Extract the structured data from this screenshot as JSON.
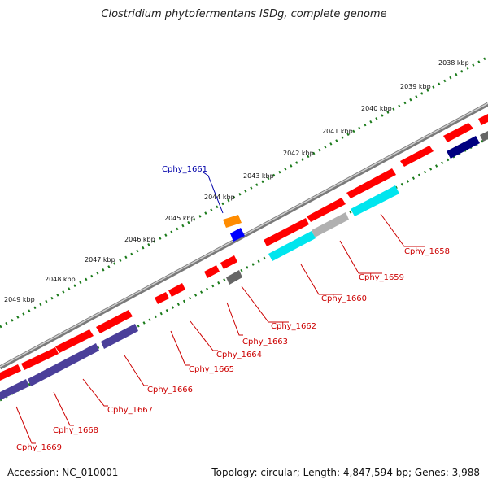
{
  "title": "Clostridium phytofermentans ISDg, complete genome",
  "footer": {
    "accession": "Accession: NC_010001",
    "topology": "Topology: circular; Length: 4,847,594 bp; Genes: 3,988"
  },
  "ruler_labels": [
    "2038 kbp",
    "2039 kbp",
    "2040 kbp",
    "2041 kbp",
    "2042 kbp",
    "2043 kbp",
    "2044 kbp",
    "2045 kbp",
    "2046 kbp",
    "2047 kbp",
    "2048 kbp",
    "2049 kbp"
  ],
  "genes": {
    "Cphy_1658": "Cphy_1658",
    "Cphy_1659": "Cphy_1659",
    "Cphy_1660": "Cphy_1660",
    "Cphy_1661": "Cphy_1661",
    "Cphy_1662": "Cphy_1662",
    "Cphy_1663": "Cphy_1663",
    "Cphy_1664": "Cphy_1664",
    "Cphy_1665": "Cphy_1665",
    "Cphy_1666": "Cphy_1666",
    "Cphy_1667": "Cphy_1667",
    "Cphy_1668": "Cphy_1668",
    "Cphy_1669": "Cphy_1669"
  },
  "colors": {
    "cds": "#ff0000",
    "rna": "#0000ff",
    "misc": "#ff8c00",
    "cog_cyan": "#00e5ee",
    "cog_gray": "#b0b0b0",
    "cog_dark_gray": "#666666",
    "cog_navy": "#000080",
    "cog_slate": "#4b3f9a",
    "ruler_dots": "#1a7a1a",
    "backbone": "#888888"
  }
}
